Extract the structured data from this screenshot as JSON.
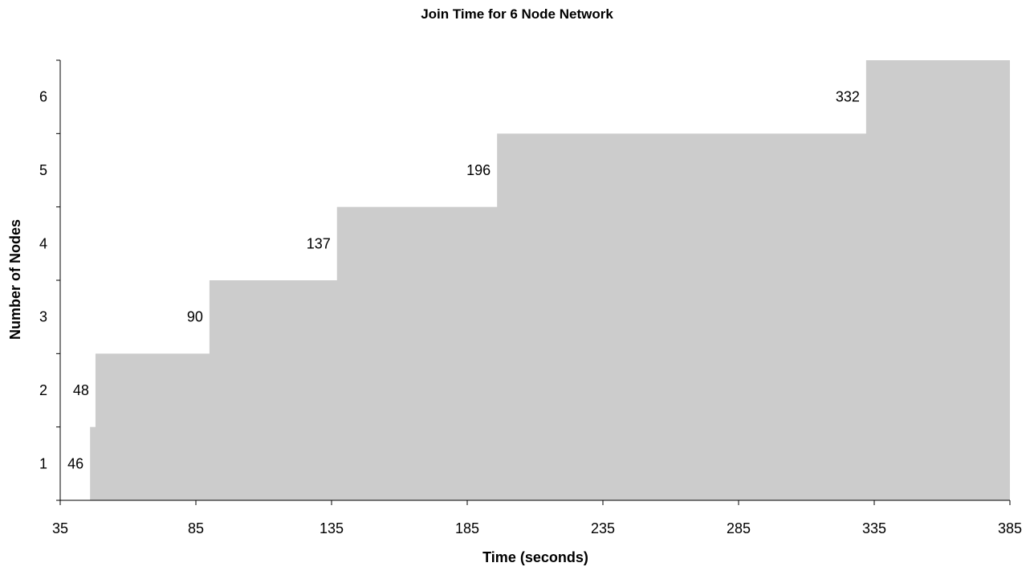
{
  "chart_data": {
    "type": "area",
    "title": "Join Time for 6 Node Network",
    "xlabel": "Time (seconds)",
    "ylabel": "Number of Nodes",
    "xlim": [
      35,
      385
    ],
    "ylim": [
      0.5,
      6.5
    ],
    "x_ticks": [
      "35",
      "85",
      "135",
      "185",
      "235",
      "285",
      "335",
      "385"
    ],
    "y_ticks": [
      "1",
      "2",
      "3",
      "4",
      "5",
      "6"
    ],
    "grid": false,
    "legend": "none",
    "fill_color": "#cccccc",
    "series": [
      {
        "values": [
          {
            "x": 46,
            "y": 1,
            "label": "46"
          },
          {
            "x": 48,
            "y": 2,
            "label": "48"
          },
          {
            "x": 90,
            "y": 3,
            "label": "90"
          },
          {
            "x": 137,
            "y": 4,
            "label": "137"
          },
          {
            "x": 196,
            "y": 5,
            "label": "196"
          },
          {
            "x": 332,
            "y": 6,
            "label": "332"
          }
        ]
      }
    ]
  }
}
